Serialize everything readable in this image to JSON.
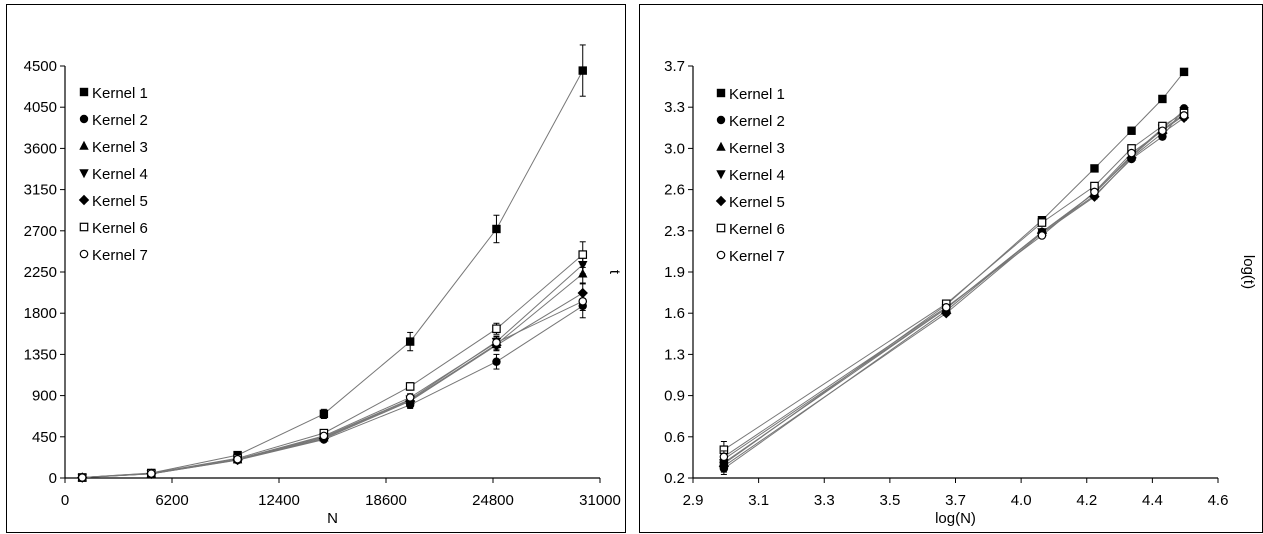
{
  "chart_data": [
    {
      "type": "line",
      "title": "",
      "xlabel": "N",
      "ylabel": "t",
      "xlim": [
        0,
        31000
      ],
      "ylim": [
        0,
        4500
      ],
      "xticks": [
        "0",
        "6200",
        "12400",
        "18600",
        "24800",
        "31000"
      ],
      "yticks": [
        "0",
        "450",
        "900",
        "1350",
        "1800",
        "2250",
        "2700",
        "3150",
        "3600",
        "4050",
        "4500"
      ],
      "x": [
        1000,
        5000,
        10000,
        15000,
        20000,
        25000,
        30000
      ],
      "grid": false,
      "legend_position": "top-left",
      "series": [
        {
          "name": "Kernel 1",
          "marker": "filled-square",
          "values": [
            5,
            55,
            250,
            700,
            1490,
            2720,
            4450
          ],
          "errors": [
            0,
            5,
            15,
            50,
            100,
            150,
            280
          ]
        },
        {
          "name": "Kernel 2",
          "marker": "filled-circle",
          "values": [
            5,
            45,
            195,
            420,
            800,
            1270,
            1880
          ],
          "errors": [
            0,
            5,
            10,
            20,
            40,
            80,
            130
          ]
        },
        {
          "name": "Kernel 3",
          "marker": "filled-triangle-up",
          "values": [
            5,
            47,
            200,
            440,
            850,
            1460,
            2230
          ],
          "errors": [
            0,
            5,
            10,
            20,
            40,
            60,
            100
          ]
        },
        {
          "name": "Kernel 4",
          "marker": "filled-triangle-down",
          "values": [
            5,
            47,
            205,
            450,
            860,
            1490,
            2330
          ],
          "errors": [
            0,
            5,
            10,
            20,
            40,
            60,
            100
          ]
        },
        {
          "name": "Kernel 5",
          "marker": "filled-diamond",
          "values": [
            5,
            46,
            198,
            430,
            840,
            1450,
            2020
          ],
          "errors": [
            0,
            5,
            10,
            20,
            40,
            60,
            100
          ]
        },
        {
          "name": "Kernel 6",
          "marker": "open-square",
          "values": [
            5,
            52,
            215,
            490,
            1000,
            1630,
            2440
          ],
          "errors": [
            0,
            5,
            10,
            30,
            40,
            60,
            140
          ]
        },
        {
          "name": "Kernel 7",
          "marker": "open-circle",
          "values": [
            5,
            48,
            205,
            460,
            880,
            1480,
            1930
          ],
          "errors": [
            0,
            5,
            10,
            20,
            40,
            60,
            100
          ]
        }
      ]
    },
    {
      "type": "line",
      "title": "",
      "xlabel": "log(N)",
      "ylabel": "log(t)",
      "xlim": [
        2.9,
        4.6
      ],
      "ylim": [
        0.2,
        3.7
      ],
      "xticks": [
        "2.9",
        "3.1",
        "3.3",
        "3.5",
        "3.7",
        "4.0",
        "4.2",
        "4.4",
        "4.6"
      ],
      "yticks": [
        "0.2",
        "0.6",
        "0.9",
        "1.3",
        "1.6",
        "1.9",
        "2.3",
        "2.6",
        "3.0",
        "3.3",
        "3.7"
      ],
      "x": [
        3.0,
        3.72,
        4.03,
        4.2,
        4.32,
        4.42,
        4.49
      ],
      "grid": false,
      "legend_position": "top-left",
      "series": [
        {
          "name": "Kernel 1",
          "marker": "filled-square",
          "values": [
            0.32,
            1.67,
            2.39,
            2.83,
            3.15,
            3.42,
            3.65
          ],
          "errors": [
            0.06,
            0.02,
            0.02,
            0.02,
            0.02,
            0.02,
            0.02
          ]
        },
        {
          "name": "Kernel 2",
          "marker": "filled-circle",
          "values": [
            0.28,
            1.62,
            2.29,
            2.6,
            2.91,
            3.1,
            3.34
          ],
          "errors": [
            0.05,
            0.02,
            0.02,
            0.02,
            0.02,
            0.02,
            0.02
          ]
        },
        {
          "name": "Kernel 3",
          "marker": "filled-triangle-up",
          "values": [
            0.36,
            1.64,
            2.29,
            2.62,
            2.93,
            3.16,
            3.29
          ],
          "errors": [
            0.05,
            0.02,
            0.02,
            0.02,
            0.02,
            0.02,
            0.02
          ]
        },
        {
          "name": "Kernel 4",
          "marker": "filled-triangle-down",
          "values": [
            0.33,
            1.64,
            2.29,
            2.62,
            2.94,
            3.17,
            3.32
          ],
          "errors": [
            0.05,
            0.02,
            0.02,
            0.02,
            0.02,
            0.02,
            0.02
          ]
        },
        {
          "name": "Kernel 5",
          "marker": "filled-diamond",
          "values": [
            0.3,
            1.6,
            2.28,
            2.59,
            2.92,
            3.13,
            3.26
          ],
          "errors": [
            0.05,
            0.02,
            0.02,
            0.02,
            0.02,
            0.02,
            0.02
          ]
        },
        {
          "name": "Kernel 6",
          "marker": "open-square",
          "values": [
            0.44,
            1.68,
            2.37,
            2.68,
            3.0,
            3.19,
            3.3
          ],
          "errors": [
            0.07,
            0.02,
            0.02,
            0.02,
            0.02,
            0.02,
            0.02
          ]
        },
        {
          "name": "Kernel 7",
          "marker": "open-circle",
          "values": [
            0.38,
            1.65,
            2.26,
            2.63,
            2.96,
            3.15,
            3.28
          ],
          "errors": [
            0.05,
            0.02,
            0.02,
            0.02,
            0.02,
            0.02,
            0.02
          ]
        }
      ]
    }
  ]
}
